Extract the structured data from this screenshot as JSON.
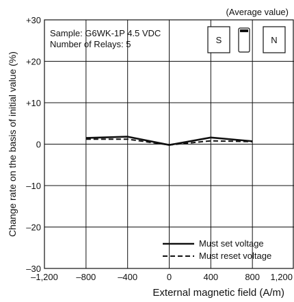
{
  "chart_data": {
    "type": "line",
    "title": "",
    "note": "(Average value)",
    "sample_line": "Sample: G6WK-1P 4.5 VDC",
    "relays_line": "Number of Relays: 5",
    "xlabel": "External magnetic field (A/m)",
    "ylabel": "Change rate on the basis of initial value (%)",
    "xlim": [
      -1200,
      1200
    ],
    "ylim": [
      -30,
      30
    ],
    "x_ticks": [
      -1200,
      -800,
      -400,
      0,
      400,
      800,
      1200
    ],
    "x_tick_labels": [
      "–1,200",
      "–800",
      "–400",
      "0",
      "400",
      "800",
      "1,200"
    ],
    "y_ticks": [
      30,
      20,
      10,
      0,
      -10,
      -20,
      -30
    ],
    "y_tick_labels": [
      "+30",
      "+20",
      "+10",
      "0",
      "–10",
      "–20",
      "–30"
    ],
    "grid": true,
    "legend_position": "bottom-right",
    "magnet_labels": {
      "south": "S",
      "north": "N"
    },
    "series": [
      {
        "name": "Must set voltage",
        "style": "solid",
        "x": [
          -800,
          -400,
          0,
          400,
          800
        ],
        "y": [
          1.5,
          1.8,
          -0.2,
          1.6,
          0.7
        ]
      },
      {
        "name": "Must reset voltage",
        "style": "dashed",
        "x": [
          -800,
          -400,
          0,
          400,
          800
        ],
        "y": [
          1.2,
          1.2,
          -0.2,
          0.8,
          0.6
        ]
      }
    ]
  }
}
